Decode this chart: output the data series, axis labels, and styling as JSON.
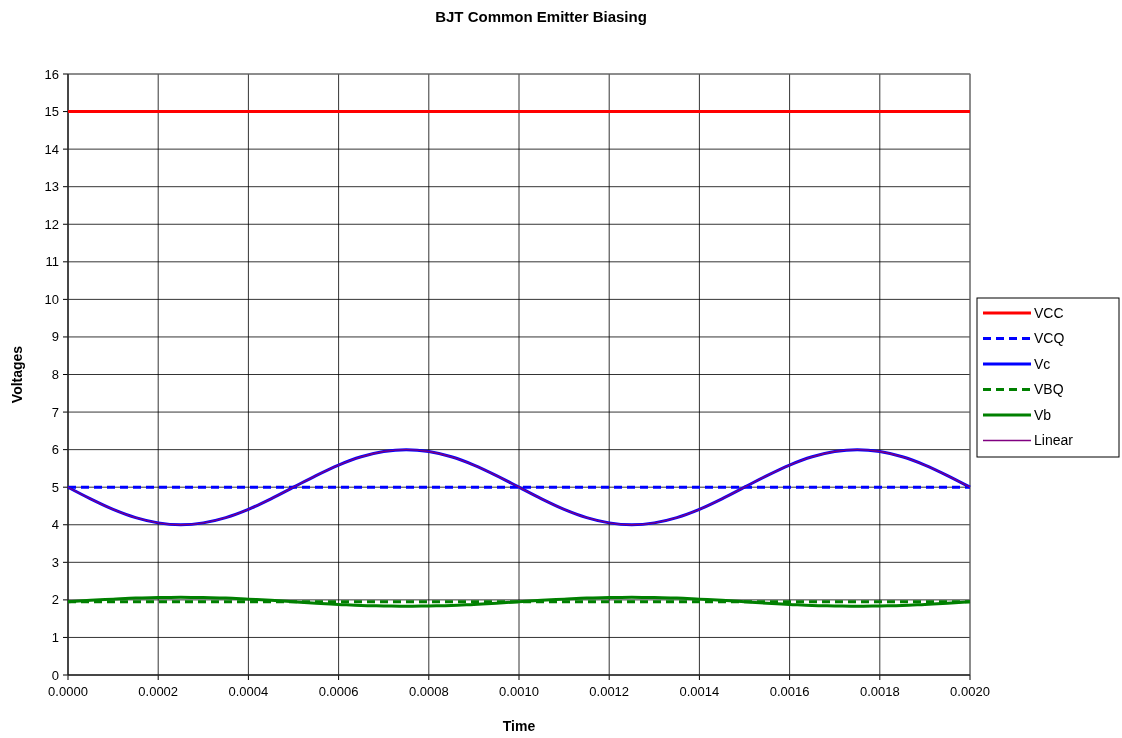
{
  "chart_data": {
    "type": "line",
    "title": "BJT Common Emitter Biasing",
    "xlabel": "Time",
    "ylabel": "Voltages",
    "x": [
      0,
      5e-05,
      0.0001,
      0.00015,
      0.0002,
      0.00025,
      0.0003,
      0.00035,
      0.0004,
      0.00045,
      0.0005,
      0.00055,
      0.0006,
      0.00065,
      0.0007,
      0.00075,
      0.0008,
      0.00085,
      0.0009,
      0.00095,
      0.001,
      0.00105,
      0.0011,
      0.00115,
      0.0012,
      0.00125,
      0.0013,
      0.00135,
      0.0014,
      0.00145,
      0.0015,
      0.00155,
      0.0016,
      0.00165,
      0.0017,
      0.00175,
      0.0018,
      0.00185,
      0.0019,
      0.00195,
      0.002
    ],
    "series": [
      {
        "name": "VCC",
        "color": "#ff0000",
        "values": [
          15,
          15,
          15,
          15,
          15,
          15,
          15,
          15,
          15,
          15,
          15,
          15,
          15,
          15,
          15,
          15,
          15,
          15,
          15,
          15,
          15,
          15,
          15,
          15,
          15,
          15,
          15,
          15,
          15,
          15,
          15,
          15,
          15,
          15,
          15,
          15,
          15,
          15,
          15,
          15,
          15
        ],
        "line_style": "solid"
      },
      {
        "name": "VCQ",
        "color": "#0000ff",
        "values": [
          5,
          5,
          5,
          5,
          5,
          5,
          5,
          5,
          5,
          5,
          5,
          5,
          5,
          5,
          5,
          5,
          5,
          5,
          5,
          5,
          5,
          5,
          5,
          5,
          5,
          5,
          5,
          5,
          5,
          5,
          5,
          5,
          5,
          5,
          5,
          5,
          5,
          5,
          5,
          5,
          5
        ],
        "line_style": "dashed"
      },
      {
        "name": "Vc",
        "color": "#0000ff",
        "line_style": "solid",
        "values": [
          5,
          4.69,
          4.41,
          4.19,
          4.05,
          4.0,
          4.05,
          4.19,
          4.41,
          4.69,
          5,
          5.31,
          5.59,
          5.81,
          5.95,
          6.0,
          5.95,
          5.81,
          5.59,
          5.31,
          5,
          4.69,
          4.41,
          4.19,
          4.05,
          4.0,
          4.05,
          4.19,
          4.41,
          4.69,
          5,
          5.31,
          5.59,
          5.81,
          5.95,
          6.0,
          5.95,
          5.81,
          5.59,
          5.31,
          5
        ]
      },
      {
        "name": "VBQ",
        "color": "#008000",
        "values": [
          1.95,
          1.95,
          1.95,
          1.95,
          1.95,
          1.95,
          1.95,
          1.95,
          1.95,
          1.95,
          1.95,
          1.95,
          1.95,
          1.95,
          1.95,
          1.95,
          1.95,
          1.95,
          1.95,
          1.95,
          1.95,
          1.95,
          1.95,
          1.95,
          1.95,
          1.95,
          1.95,
          1.95,
          1.95,
          1.95,
          1.95,
          1.95,
          1.95,
          1.95,
          1.95,
          1.95,
          1.95,
          1.95,
          1.95,
          1.95,
          1.95
        ],
        "line_style": "dashed"
      },
      {
        "name": "Vb",
        "color": "#008000",
        "line_style": "solid",
        "values": [
          1.95,
          1.99,
          2.02,
          2.05,
          2.06,
          2.07,
          2.06,
          2.05,
          2.02,
          1.99,
          1.95,
          1.91,
          1.88,
          1.85,
          1.84,
          1.83,
          1.84,
          1.85,
          1.88,
          1.91,
          1.95,
          1.99,
          2.02,
          2.05,
          2.06,
          2.07,
          2.06,
          2.05,
          2.02,
          1.99,
          1.95,
          1.91,
          1.88,
          1.85,
          1.84,
          1.83,
          1.84,
          1.85,
          1.88,
          1.91,
          1.95
        ]
      },
      {
        "name": "Linear",
        "color": "#800080",
        "line_style": "solid",
        "values": [
          5,
          4.69,
          4.41,
          4.19,
          4.05,
          4.0,
          4.05,
          4.19,
          4.41,
          4.69,
          5,
          5.31,
          5.59,
          5.81,
          5.95,
          6.0,
          5.95,
          5.81,
          5.59,
          5.31,
          5,
          4.69,
          4.41,
          4.19,
          4.05,
          4.0,
          4.05,
          4.19,
          4.41,
          4.69,
          5,
          5.31,
          5.59,
          5.81,
          5.95,
          6.0,
          5.95,
          5.81,
          5.59,
          5.31,
          5
        ]
      }
    ],
    "xlim": [
      0,
      0.002
    ],
    "xticks": [
      {
        "value": 0,
        "label": "0.0000"
      },
      {
        "value": 0.0002,
        "label": "0.0002"
      },
      {
        "value": 0.0004,
        "label": "0.0004"
      },
      {
        "value": 0.0006,
        "label": "0.0006"
      },
      {
        "value": 0.0008,
        "label": "0.0008"
      },
      {
        "value": 0.001,
        "label": "0.0010"
      },
      {
        "value": 0.0012,
        "label": "0.0012"
      },
      {
        "value": 0.0014,
        "label": "0.0014"
      },
      {
        "value": 0.0016,
        "label": "0.0016"
      },
      {
        "value": 0.0018,
        "label": "0.0018"
      },
      {
        "value": 0.002,
        "label": "0.0020"
      }
    ],
    "ylim": [
      0,
      16
    ],
    "yticks": [
      0,
      1,
      2,
      3,
      4,
      5,
      6,
      7,
      8,
      9,
      10,
      11,
      12,
      13,
      14,
      15,
      16
    ],
    "grid": true,
    "legend": "right",
    "marker": "none"
  }
}
